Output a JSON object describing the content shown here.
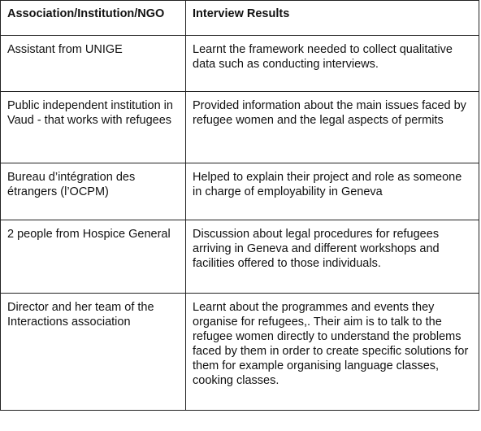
{
  "table": {
    "headers": [
      "Association/Institution/NGO",
      "Interview Results"
    ],
    "rows": [
      {
        "institution": "Assistant from UNIGE",
        "result": "Learnt the framework needed to collect qualitative data such as conducting interviews."
      },
      {
        "institution": "Public independent institution in Vaud - that works with refugees",
        "result": "Provided information about the main issues faced by refugee women and the legal aspects of permits"
      },
      {
        "institution": "Bureau d’intégration des étrangers (l’OCPM)",
        "result": "Helped to explain their project and role as someone  in charge of employability in Geneva"
      },
      {
        "institution": "2 people from Hospice General",
        "result": "Discussion about legal procedures for refugees arriving in Geneva and different workshops and facilities offered to those individuals."
      },
      {
        "institution": "Director and her team of the Interactions association",
        "result": "Learnt about the programmes and events they organise for refugees,. Their aim is to talk to the refugee women directly to understand the problems faced by them in order to create specific solutions for them for example organising language classes, cooking classes."
      }
    ]
  }
}
